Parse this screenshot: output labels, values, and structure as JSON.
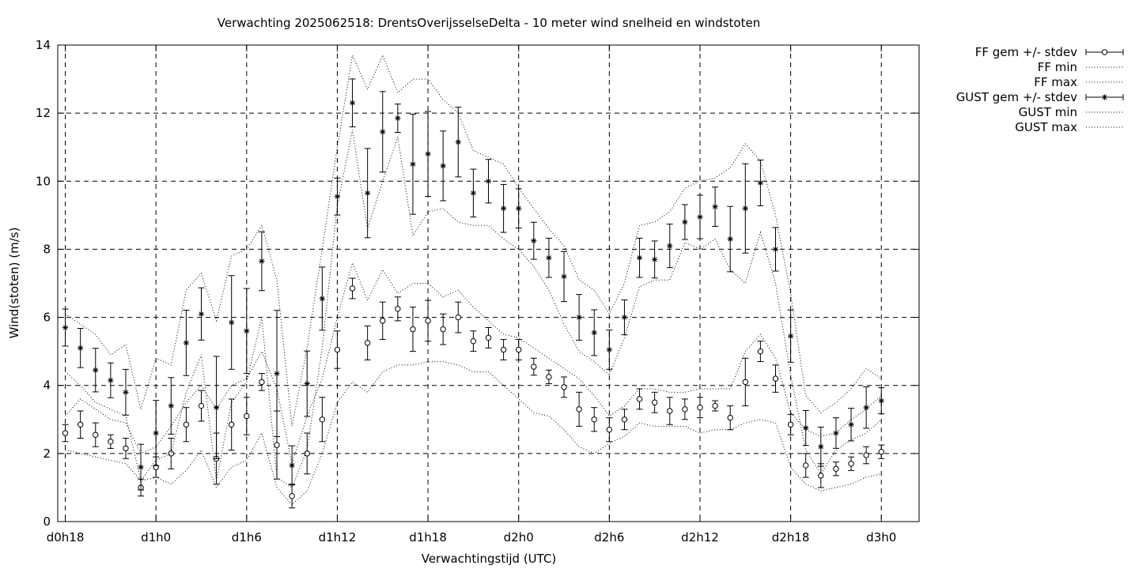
{
  "chart_data": {
    "type": "line",
    "title": "Verwachting 2025062518: DrentsOverijsselseDelta - 10 meter wind snelheid en windstoten",
    "xlabel": "Verwachtingstijd (UTC)",
    "ylabel": "Wind(stoten) (m/s)",
    "ylim": [
      0,
      14
    ],
    "yticks": [
      0,
      2,
      4,
      6,
      8,
      10,
      12,
      14
    ],
    "xlim": [
      -0.5,
      56.5
    ],
    "xticks": [
      {
        "x": 0,
        "label": "d0h18"
      },
      {
        "x": 6,
        "label": "d1h0"
      },
      {
        "x": 12,
        "label": "d1h6"
      },
      {
        "x": 18,
        "label": "d1h12"
      },
      {
        "x": 24,
        "label": "d1h18"
      },
      {
        "x": 30,
        "label": "d2h0"
      },
      {
        "x": 36,
        "label": "d2h6"
      },
      {
        "x": 42,
        "label": "d2h12"
      },
      {
        "x": 48,
        "label": "d2h18"
      },
      {
        "x": 54,
        "label": "d3h0"
      }
    ],
    "grid": true,
    "legend_position": "outside-top-right",
    "x": [
      0,
      1,
      2,
      3,
      4,
      5,
      6,
      7,
      8,
      9,
      10,
      11,
      12,
      13,
      14,
      15,
      16,
      17,
      18,
      19,
      20,
      21,
      22,
      23,
      24,
      25,
      26,
      27,
      28,
      29,
      30,
      31,
      32,
      33,
      34,
      35,
      36,
      37,
      38,
      39,
      40,
      41,
      42,
      43,
      44,
      45,
      46,
      47,
      48,
      49,
      50,
      51,
      52,
      53,
      54
    ],
    "series": [
      {
        "name": "FF gem +/- stdev",
        "style": "errorbars-circle",
        "values": [
          2.6,
          2.85,
          2.55,
          2.35,
          2.15,
          1.0,
          1.6,
          2.0,
          2.85,
          3.4,
          1.85,
          2.85,
          3.1,
          4.1,
          2.25,
          0.75,
          2.0,
          3.0,
          5.05,
          6.85,
          5.25,
          5.9,
          6.25,
          5.65,
          5.9,
          5.65,
          6.0,
          5.3,
          5.4,
          5.05,
          5.05,
          4.55,
          4.25,
          3.95,
          3.3,
          3.0,
          2.7,
          3.0,
          3.6,
          3.5,
          3.25,
          3.3,
          3.35,
          3.4,
          3.05,
          4.1,
          5.0,
          4.2,
          2.85,
          1.65,
          1.35,
          1.55,
          1.7,
          1.95,
          2.05
        ],
        "stdev": [
          0.25,
          0.4,
          0.35,
          0.2,
          0.3,
          0.25,
          0.3,
          0.45,
          0.5,
          0.45,
          0.75,
          0.75,
          0.55,
          0.25,
          1.0,
          0.35,
          0.6,
          0.65,
          0.55,
          0.3,
          0.5,
          0.55,
          0.35,
          0.65,
          0.6,
          0.45,
          0.45,
          0.3,
          0.3,
          0.3,
          0.3,
          0.25,
          0.2,
          0.3,
          0.5,
          0.35,
          0.35,
          0.3,
          0.3,
          0.3,
          0.4,
          0.3,
          0.3,
          0.15,
          0.35,
          0.7,
          0.3,
          0.4,
          0.3,
          0.35,
          0.35,
          0.2,
          0.2,
          0.25,
          0.2
        ]
      },
      {
        "name": "FF min",
        "style": "dotted",
        "values": [
          2.1,
          2.0,
          1.9,
          1.8,
          1.7,
          1.2,
          1.3,
          1.1,
          1.5,
          2.1,
          1.0,
          1.6,
          1.8,
          2.6,
          1.0,
          0.5,
          0.9,
          2.0,
          3.5,
          4.1,
          3.8,
          4.4,
          4.6,
          4.6,
          4.7,
          4.7,
          4.6,
          4.4,
          4.4,
          4.0,
          3.6,
          3.2,
          3.1,
          2.7,
          2.2,
          2.0,
          2.3,
          2.5,
          2.9,
          2.8,
          2.8,
          2.8,
          2.6,
          2.7,
          2.7,
          2.9,
          3.0,
          2.9,
          1.6,
          1.1,
          0.9,
          1.0,
          1.1,
          1.3,
          1.4
        ]
      },
      {
        "name": "FF max",
        "style": "dotted",
        "values": [
          3.1,
          3.6,
          3.3,
          3.0,
          2.9,
          2.0,
          2.2,
          2.8,
          3.5,
          4.0,
          3.3,
          4.0,
          4.2,
          5.0,
          3.9,
          1.7,
          3.1,
          4.2,
          6.0,
          7.6,
          6.5,
          7.4,
          6.7,
          7.0,
          7.0,
          6.6,
          6.8,
          6.3,
          5.9,
          5.5,
          5.4,
          5.1,
          4.8,
          4.5,
          4.2,
          3.7,
          3.1,
          3.4,
          3.9,
          3.9,
          3.8,
          3.8,
          3.9,
          3.9,
          3.9,
          5.0,
          5.5,
          4.8,
          3.2,
          2.7,
          2.5,
          2.6,
          3.0,
          3.3,
          3.7
        ]
      },
      {
        "name": "GUST gem +/- stdev",
        "style": "errorbars-star",
        "values": [
          5.7,
          5.1,
          4.45,
          4.15,
          3.8,
          1.6,
          2.6,
          3.4,
          5.25,
          6.1,
          3.35,
          5.85,
          5.6,
          7.65,
          4.35,
          1.65,
          4.05,
          6.55,
          9.55,
          12.3,
          9.65,
          11.45,
          11.85,
          10.5,
          10.8,
          10.45,
          11.15,
          9.65,
          10.0,
          9.2,
          9.2,
          8.25,
          7.75,
          7.2,
          6.0,
          5.55,
          5.05,
          6.0,
          7.75,
          7.7,
          8.1,
          8.8,
          8.95,
          9.25,
          8.3,
          9.2,
          9.95,
          8.0,
          5.45,
          2.75,
          2.2,
          2.6,
          2.85,
          3.35,
          3.55
        ]
      },
      {
        "name": "GUST min",
        "style": "dotted",
        "values": [
          4.4,
          4.0,
          3.5,
          3.3,
          3.1,
          1.2,
          1.8,
          2.0,
          3.8,
          4.9,
          1.2,
          3.5,
          4.1,
          6.0,
          1.3,
          1.0,
          2.1,
          5.1,
          9.3,
          11.5,
          8.6,
          10.0,
          11.3,
          8.4,
          9.1,
          9.2,
          8.8,
          8.7,
          8.7,
          8.3,
          8.0,
          7.5,
          6.8,
          5.8,
          5.0,
          4.7,
          4.3,
          5.4,
          6.9,
          7.1,
          7.1,
          8.2,
          8.0,
          8.3,
          7.4,
          7.0,
          8.5,
          7.0,
          4.3,
          2.1,
          1.4,
          2.1,
          2.4,
          2.6,
          3.0
        ]
      },
      {
        "name": "GUST max",
        "style": "dotted",
        "values": [
          6.1,
          5.8,
          5.5,
          4.9,
          5.2,
          3.3,
          4.8,
          4.6,
          6.8,
          7.3,
          5.9,
          7.8,
          8.0,
          8.7,
          7.1,
          2.8,
          5.1,
          8.0,
          11.0,
          13.7,
          12.7,
          13.7,
          12.6,
          13.0,
          13.0,
          12.4,
          12.0,
          10.9,
          10.7,
          10.5,
          9.8,
          9.2,
          8.6,
          8.1,
          7.1,
          6.8,
          6.1,
          7.0,
          8.7,
          8.8,
          9.1,
          9.8,
          10.0,
          10.1,
          10.4,
          11.1,
          10.6,
          9.0,
          6.7,
          3.7,
          3.2,
          3.5,
          3.9,
          4.5,
          4.2
        ]
      }
    ]
  }
}
